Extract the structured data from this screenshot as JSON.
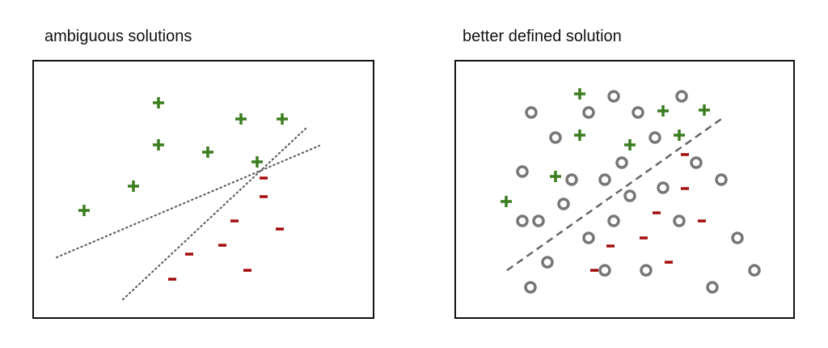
{
  "panels": [
    {
      "title": "ambiguous solutions"
    },
    {
      "title": "better defined solution"
    }
  ]
}
